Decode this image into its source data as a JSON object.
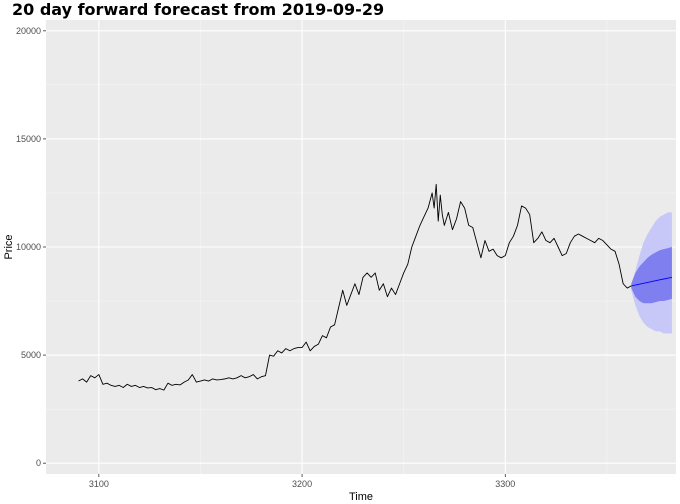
{
  "chart_data": {
    "type": "line",
    "title": "20 day forward forecast from 2019-09-29",
    "xlabel": "Time",
    "ylabel": "Price",
    "xlim": [
      3074,
      3384
    ],
    "ylim": [
      -500,
      20500
    ],
    "xticks": [
      3100,
      3200,
      3300
    ],
    "yticks": [
      0,
      5000,
      10000,
      15000,
      20000
    ],
    "grid": true,
    "series": [
      {
        "role": "observed",
        "color": "#000000",
        "x": [
          3090,
          3092,
          3094,
          3096,
          3098,
          3100,
          3102,
          3104,
          3106,
          3108,
          3110,
          3112,
          3114,
          3116,
          3118,
          3120,
          3122,
          3124,
          3126,
          3128,
          3130,
          3132,
          3134,
          3136,
          3138,
          3140,
          3142,
          3144,
          3146,
          3148,
          3150,
          3152,
          3154,
          3156,
          3158,
          3160,
          3162,
          3164,
          3166,
          3168,
          3170,
          3172,
          3174,
          3176,
          3178,
          3180,
          3182,
          3184,
          3186,
          3188,
          3190,
          3192,
          3194,
          3196,
          3198,
          3200,
          3202,
          3204,
          3206,
          3208,
          3210,
          3212,
          3214,
          3216,
          3218,
          3220,
          3222,
          3224,
          3226,
          3228,
          3230,
          3232,
          3234,
          3236,
          3238,
          3240,
          3242,
          3244,
          3246,
          3248,
          3250,
          3252,
          3254,
          3256,
          3258,
          3260,
          3262,
          3264,
          3265,
          3266,
          3267,
          3268,
          3269,
          3270,
          3272,
          3274,
          3276,
          3278,
          3280,
          3282,
          3284,
          3286,
          3288,
          3290,
          3292,
          3294,
          3296,
          3298,
          3300,
          3302,
          3304,
          3306,
          3308,
          3310,
          3312,
          3314,
          3316,
          3318,
          3320,
          3322,
          3324,
          3326,
          3328,
          3330,
          3332,
          3334,
          3336,
          3338,
          3340,
          3342,
          3344,
          3346,
          3348,
          3350,
          3352,
          3354,
          3356,
          3358,
          3360,
          3362
        ],
        "y": [
          3800,
          3900,
          3750,
          4050,
          3950,
          4100,
          3650,
          3700,
          3600,
          3550,
          3600,
          3500,
          3650,
          3550,
          3600,
          3500,
          3550,
          3480,
          3500,
          3400,
          3450,
          3380,
          3700,
          3600,
          3650,
          3620,
          3750,
          3850,
          4100,
          3750,
          3800,
          3850,
          3800,
          3900,
          3850,
          3870,
          3900,
          3950,
          3900,
          3950,
          4050,
          3950,
          4000,
          4100,
          3900,
          4000,
          4050,
          5000,
          4950,
          5200,
          5100,
          5300,
          5200,
          5300,
          5350,
          5350,
          5600,
          5200,
          5400,
          5500,
          5900,
          5800,
          6300,
          6400,
          7200,
          8000,
          7300,
          7800,
          8300,
          7800,
          8600,
          8800,
          8600,
          8800,
          8000,
          8300,
          7700,
          8100,
          7800,
          8300,
          8800,
          9200,
          10000,
          10500,
          11000,
          11400,
          11800,
          12500,
          11800,
          12900,
          11200,
          12400,
          11500,
          11000,
          11600,
          10800,
          11300,
          12100,
          11800,
          11000,
          10900,
          10200,
          9500,
          10300,
          9800,
          9900,
          9600,
          9500,
          9600,
          10200,
          10500,
          11000,
          11900,
          11800,
          11500,
          10200,
          10400,
          10700,
          10300,
          10200,
          10400,
          10000,
          9600,
          9700,
          10200,
          10500,
          10600,
          10500,
          10400,
          10300,
          10200,
          10400,
          10300,
          10100,
          9900,
          9800,
          9200,
          8300,
          8100,
          8200
        ],
        "name": ""
      },
      {
        "role": "forecast-mean",
        "color": "#0000ff",
        "x": [
          3362,
          3364,
          3366,
          3368,
          3370,
          3372,
          3374,
          3376,
          3378,
          3380,
          3382
        ],
        "y": [
          8200,
          8240,
          8280,
          8320,
          8360,
          8400,
          8440,
          8480,
          8520,
          8560,
          8600
        ],
        "name": ""
      }
    ],
    "bands": [
      {
        "level": "95%",
        "color": "#c8c8f8",
        "x": [
          3362,
          3364,
          3366,
          3368,
          3370,
          3372,
          3374,
          3376,
          3378,
          3380,
          3382
        ],
        "lower": [
          8000,
          7300,
          6800,
          6500,
          6300,
          6200,
          6100,
          6100,
          6000,
          6000,
          6000
        ],
        "upper": [
          8300,
          8900,
          9600,
          10200,
          10600,
          10900,
          11200,
          11400,
          11500,
          11600,
          11600
        ]
      },
      {
        "level": "80%",
        "color": "#7f7ff0",
        "x": [
          3362,
          3364,
          3366,
          3368,
          3370,
          3372,
          3374,
          3376,
          3378,
          3380,
          3382
        ],
        "lower": [
          8100,
          7700,
          7500,
          7400,
          7400,
          7400,
          7450,
          7500,
          7500,
          7550,
          7600
        ],
        "upper": [
          8300,
          8800,
          9100,
          9300,
          9500,
          9650,
          9750,
          9850,
          9900,
          9950,
          10000
        ]
      }
    ]
  }
}
